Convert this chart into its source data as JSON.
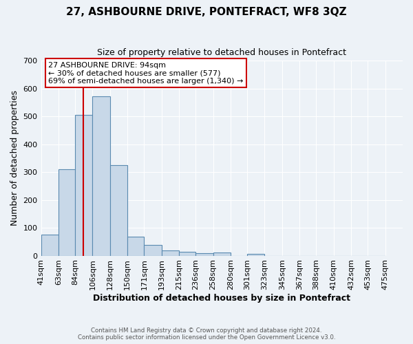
{
  "title": "27, ASHBOURNE DRIVE, PONTEFRACT, WF8 3QZ",
  "subtitle": "Size of property relative to detached houses in Pontefract",
  "xlabel": "Distribution of detached houses by size in Pontefract",
  "ylabel": "Number of detached properties",
  "bin_labels": [
    "41sqm",
    "63sqm",
    "84sqm",
    "106sqm",
    "128sqm",
    "150sqm",
    "171sqm",
    "193sqm",
    "215sqm",
    "236sqm",
    "258sqm",
    "280sqm",
    "301sqm",
    "323sqm",
    "345sqm",
    "367sqm",
    "388sqm",
    "410sqm",
    "432sqm",
    "453sqm",
    "475sqm"
  ],
  "bin_edges": [
    41,
    63,
    84,
    106,
    128,
    150,
    171,
    193,
    215,
    236,
    258,
    280,
    301,
    323,
    345,
    367,
    388,
    410,
    432,
    453,
    475
  ],
  "bar_heights": [
    75,
    311,
    505,
    572,
    325,
    67,
    38,
    19,
    15,
    10,
    12,
    0,
    7,
    0,
    0,
    0,
    0,
    0,
    0,
    0
  ],
  "bar_color": "#c8d8e8",
  "bar_edge_color": "#5a8ab0",
  "red_line_x": 94,
  "annotation_title": "27 ASHBOURNE DRIVE: 94sqm",
  "annotation_line1": "← 30% of detached houses are smaller (577)",
  "annotation_line2": "69% of semi-detached houses are larger (1,340) →",
  "annotation_box_color": "#ffffff",
  "annotation_box_edgecolor": "#cc0000",
  "red_line_color": "#cc0000",
  "ylim": [
    0,
    700
  ],
  "yticks": [
    0,
    100,
    200,
    300,
    400,
    500,
    600,
    700
  ],
  "background_color": "#edf2f7",
  "footer_line1": "Contains HM Land Registry data © Crown copyright and database right 2024.",
  "footer_line2": "Contains public sector information licensed under the Open Government Licence v3.0."
}
